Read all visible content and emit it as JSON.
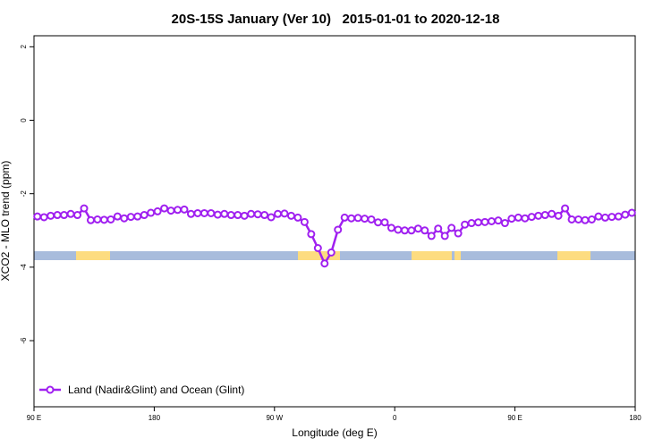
{
  "chart_data": {
    "type": "line",
    "title": "20S-15S January (Ver 10)   2015-01-01 to 2020-12-18",
    "x_label": "Longitude (deg E)",
    "y_label": "XCO2 - MLO trend (ppm)",
    "xlim": [
      90,
      540
    ],
    "ylim": [
      -7.8,
      2.3
    ],
    "xticks": [
      {
        "value": 90,
        "label": "90 E"
      },
      180,
      {
        "value": 270,
        "label": "90 W"
      },
      {
        "value": 360,
        "label": "0"
      },
      {
        "value": 450,
        "label": "90 E"
      },
      {
        "value": 540,
        "label": "180"
      }
    ],
    "yticks": [
      -6,
      -4,
      -2,
      0,
      2
    ],
    "legend": "bottom left",
    "x": [
      92.5,
      97.5,
      102.5,
      107.5,
      112.5,
      117.5,
      122.5,
      127.5,
      132.5,
      137.5,
      142.5,
      147.5,
      152.5,
      157.5,
      162.5,
      167.5,
      172.5,
      177.5,
      182.5,
      187.5,
      192.5,
      197.5,
      202.5,
      207.5,
      212.5,
      217.5,
      222.5,
      227.5,
      232.5,
      237.5,
      242.5,
      247.5,
      252.5,
      257.5,
      262.5,
      267.5,
      272.5,
      277.5,
      282.5,
      287.5,
      292.5,
      297.5,
      302.5,
      307.5,
      312.5,
      317.5,
      322.5,
      327.5,
      332.5,
      337.5,
      342.5,
      347.5,
      352.5,
      357.5,
      362.5,
      367.5,
      372.5,
      377.5,
      382.5,
      387.5,
      392.5,
      397.5,
      402.5,
      407.5,
      412.5,
      417.5,
      422.5,
      427.5,
      432.5,
      437.5,
      442.5,
      447.5,
      452.5,
      457.5,
      462.5,
      467.5,
      472.5,
      477.5,
      482.5,
      487.5,
      492.5,
      497.5,
      502.5,
      507.5,
      512.5,
      517.5,
      522.5,
      527.5,
      532.5,
      537.5
    ],
    "series": [
      {
        "name": "Land (Nadir&Glint) and Ocean (Glint)",
        "color": "#a020f0",
        "values": [
          -2.62,
          -2.64,
          -2.6,
          -2.58,
          -2.58,
          -2.55,
          -2.58,
          -2.4,
          -2.72,
          -2.7,
          -2.71,
          -2.7,
          -2.62,
          -2.67,
          -2.63,
          -2.62,
          -2.58,
          -2.52,
          -2.48,
          -2.4,
          -2.46,
          -2.44,
          -2.43,
          -2.55,
          -2.53,
          -2.53,
          -2.53,
          -2.57,
          -2.55,
          -2.58,
          -2.58,
          -2.6,
          -2.55,
          -2.56,
          -2.58,
          -2.64,
          -2.55,
          -2.54,
          -2.6,
          -2.65,
          -2.77,
          -3.1,
          -3.48,
          -3.9,
          -3.6,
          -2.98,
          -2.65,
          -2.67,
          -2.66,
          -2.68,
          -2.7,
          -2.78,
          -2.78,
          -2.93,
          -2.98,
          -3.0,
          -3.0,
          -2.95,
          -3.0,
          -3.15,
          -2.95,
          -3.15,
          -2.93,
          -3.08,
          -2.84,
          -2.8,
          -2.78,
          -2.77,
          -2.75,
          -2.73,
          -2.8,
          -2.68,
          -2.65,
          -2.67,
          -2.63,
          -2.6,
          -2.58,
          -2.55,
          -2.6,
          -2.4,
          -2.7,
          -2.7,
          -2.72,
          -2.7,
          -2.62,
          -2.65,
          -2.63,
          -2.62,
          -2.57,
          -2.52
        ]
      }
    ]
  }
}
